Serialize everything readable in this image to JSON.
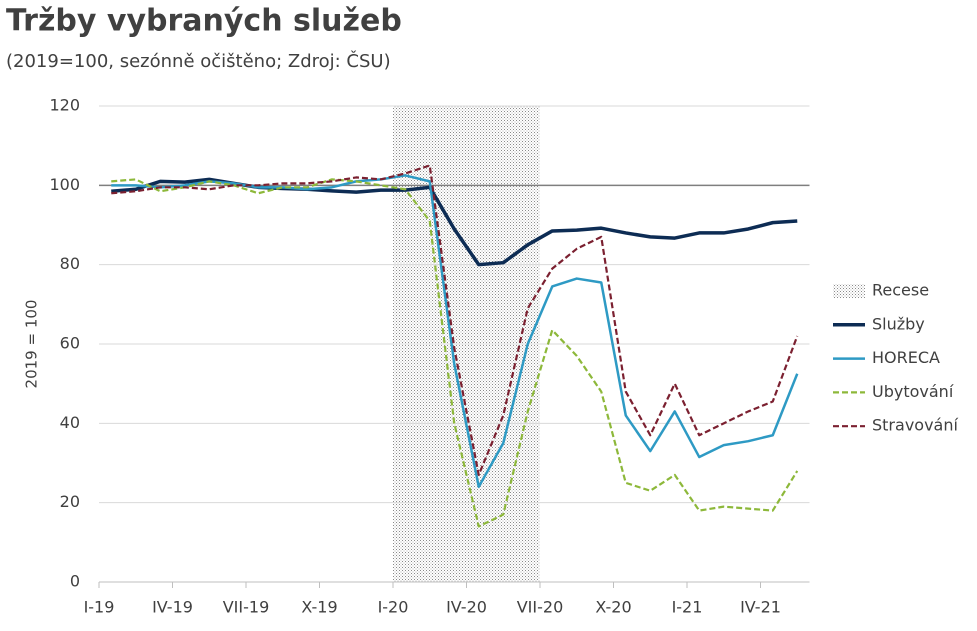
{
  "chart_data": {
    "type": "line",
    "title": "Tržby vybraných služeb",
    "subtitle": "(2019=100, sezónně očištěno; Zdroj: ČSU)",
    "y_label": "2019 = 100",
    "categories": [
      "I-19",
      null,
      null,
      "IV-19",
      null,
      null,
      "VII-19",
      null,
      null,
      "X-19",
      null,
      null,
      "I-20",
      null,
      null,
      "IV-20",
      null,
      null,
      "VII-20",
      null,
      null,
      "X-20",
      null,
      null,
      "I-21",
      null,
      null,
      "IV-21",
      null
    ],
    "ylim": [
      0,
      120
    ],
    "yticks": [
      0,
      20,
      40,
      60,
      80,
      100,
      120
    ],
    "grid": true,
    "reference_line": 100,
    "recession": {
      "name": "Recese",
      "start": 12,
      "end": 17
    },
    "legend": "right",
    "series": [
      {
        "name": "Služby",
        "color": "#0d2c54",
        "dashed": false,
        "values": [
          98.5,
          99,
          101,
          100.8,
          101.5,
          100.5,
          99.5,
          99.2,
          99,
          98.6,
          98.3,
          98.8,
          98.8,
          99.5,
          89,
          80,
          80.5,
          85,
          88.5,
          88.7,
          89.2,
          88,
          87,
          86.7,
          88,
          88,
          89,
          90.6,
          91
        ]
      },
      {
        "name": "HORECA",
        "color": "#2e9ac4",
        "dashed": false,
        "values": [
          100,
          100,
          99.5,
          100,
          101,
          100.5,
          99.5,
          99.5,
          99,
          99.5,
          101,
          101.5,
          102.5,
          101,
          55,
          24,
          35,
          60,
          74.5,
          76.5,
          75.5,
          42,
          33,
          43,
          31.5,
          34.5,
          35.5,
          37,
          52.5
        ]
      },
      {
        "name": "Ubytování",
        "color": "#8db83a",
        "dashed": true,
        "values": [
          101,
          101.5,
          98.5,
          99.5,
          101,
          100,
          98,
          99.5,
          99.5,
          101.5,
          101,
          100,
          99,
          91,
          40,
          14,
          17,
          43,
          63.5,
          57,
          48,
          25,
          23,
          27,
          18,
          19,
          18.5,
          18,
          28
        ]
      },
      {
        "name": "Stravování",
        "color": "#7b2030",
        "dashed": true,
        "values": [
          98,
          98.5,
          99.5,
          99.5,
          99,
          100,
          100,
          100.5,
          100.5,
          101,
          102,
          101.5,
          103,
          105,
          59,
          27,
          42,
          69,
          79,
          84,
          87,
          48,
          37,
          50,
          37,
          40,
          43,
          45.5,
          62
        ]
      }
    ]
  }
}
